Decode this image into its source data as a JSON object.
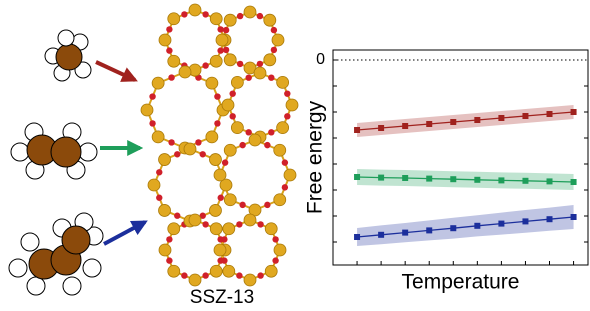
{
  "figure_label": "SSZ-13",
  "chart_data": {
    "type": "line",
    "xlabel": "Temperature",
    "ylabel": "Free energy",
    "x": [
      1,
      2,
      3,
      4,
      5,
      6,
      7,
      8,
      9,
      10
    ],
    "xlim": [
      0,
      10.6
    ],
    "ylim": [
      -10.25,
      0.5
    ],
    "yticks": [
      0
    ],
    "y_minor_ticks": [
      -1.3,
      -2.6,
      -3.9,
      -5.2,
      -6.5,
      -7.8,
      -9.1
    ],
    "x_minor_ticks": [
      1,
      2,
      3,
      4,
      5,
      6,
      7,
      8,
      9,
      10
    ],
    "zero_line": true,
    "series": [
      {
        "color": "#a0221e",
        "values": [
          -3.5,
          -3.4,
          -3.3,
          -3.2,
          -3.1,
          -3.0,
          -2.9,
          -2.8,
          -2.7,
          -2.6
        ],
        "error": [
          0.35,
          0.35,
          0.35,
          0.35,
          0.35,
          0.35,
          0.35,
          0.35,
          0.35,
          0.35
        ]
      },
      {
        "color": "#1e9e5a",
        "values": [
          -5.85,
          -5.88,
          -5.9,
          -5.93,
          -5.96,
          -5.99,
          -6.02,
          -6.04,
          -6.07,
          -6.1
        ],
        "error": [
          0.4,
          0.4,
          0.4,
          0.4,
          0.4,
          0.4,
          0.4,
          0.4,
          0.4,
          0.4
        ]
      },
      {
        "color": "#1c2f9c",
        "values": [
          -8.85,
          -8.74,
          -8.63,
          -8.52,
          -8.41,
          -8.29,
          -8.18,
          -8.07,
          -7.96,
          -7.85
        ],
        "error": [
          0.45,
          0.47,
          0.48,
          0.5,
          0.52,
          0.53,
          0.55,
          0.57,
          0.58,
          0.6
        ]
      }
    ]
  }
}
